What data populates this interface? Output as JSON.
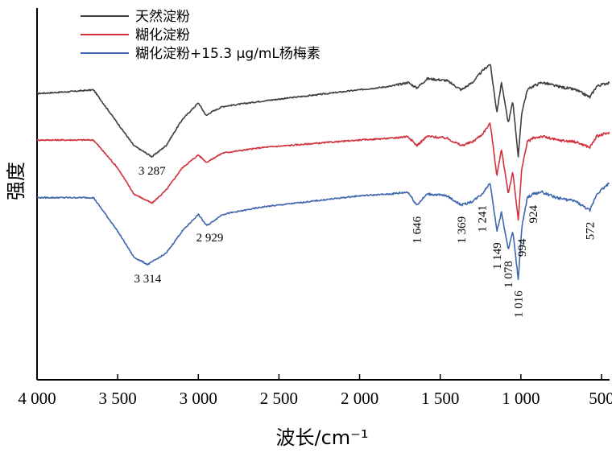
{
  "chart_data": {
    "type": "line",
    "xlabel": "波长/cm⁻¹",
    "ylabel": "强度",
    "x_range": [
      4000,
      450
    ],
    "x_reversed": true,
    "x_ticks": [
      4000,
      3500,
      3000,
      2500,
      2000,
      1500,
      1000,
      500
    ],
    "x_tick_labels": [
      "4 000",
      "3 500",
      "3 000",
      "2 500",
      "2 000",
      "1 500",
      "1 000",
      "500"
    ],
    "y_ticks_shown": false,
    "ylim": [
      0,
      1
    ],
    "legend_position": "top-left",
    "series": [
      {
        "name": "天然淀粉",
        "color": "#3f3f3f",
        "x": [
          4000,
          3800,
          3650,
          3500,
          3400,
          3287,
          3200,
          3100,
          3000,
          2950,
          2929,
          2850,
          2600,
          2300,
          2000,
          1800,
          1700,
          1646,
          1580,
          1460,
          1369,
          1300,
          1241,
          1190,
          1149,
          1120,
          1078,
          1050,
          1016,
          994,
          960,
          924,
          870,
          780,
          660,
          572,
          530,
          450
        ],
        "values": [
          0.77,
          0.775,
          0.78,
          0.69,
          0.63,
          0.6,
          0.63,
          0.7,
          0.745,
          0.71,
          0.718,
          0.735,
          0.75,
          0.765,
          0.78,
          0.79,
          0.8,
          0.785,
          0.81,
          0.805,
          0.78,
          0.8,
          0.83,
          0.85,
          0.72,
          0.8,
          0.69,
          0.75,
          0.6,
          0.72,
          0.78,
          0.79,
          0.8,
          0.79,
          0.78,
          0.76,
          0.79,
          0.8
        ]
      },
      {
        "name": "糊化淀粉",
        "color": "#d0313d",
        "x": [
          4000,
          3800,
          3650,
          3500,
          3400,
          3287,
          3200,
          3100,
          3000,
          2950,
          2929,
          2850,
          2600,
          2300,
          2000,
          1800,
          1700,
          1646,
          1580,
          1460,
          1369,
          1300,
          1241,
          1190,
          1149,
          1120,
          1078,
          1050,
          1016,
          994,
          960,
          924,
          870,
          780,
          660,
          572,
          530,
          450
        ],
        "values": [
          0.645,
          0.645,
          0.645,
          0.57,
          0.5,
          0.475,
          0.51,
          0.57,
          0.605,
          0.585,
          0.59,
          0.61,
          0.625,
          0.635,
          0.645,
          0.65,
          0.655,
          0.63,
          0.655,
          0.65,
          0.63,
          0.64,
          0.66,
          0.69,
          0.55,
          0.62,
          0.5,
          0.56,
          0.43,
          0.57,
          0.64,
          0.65,
          0.655,
          0.645,
          0.64,
          0.625,
          0.655,
          0.665
        ]
      },
      {
        "name": "糊化淀粉+15.3 μg/mL杨梅素",
        "color": "#3f67ae",
        "x": [
          4000,
          3800,
          3650,
          3500,
          3400,
          3314,
          3200,
          3100,
          3000,
          2950,
          2929,
          2850,
          2600,
          2300,
          2000,
          1800,
          1700,
          1646,
          1580,
          1460,
          1369,
          1300,
          1241,
          1190,
          1149,
          1120,
          1078,
          1050,
          1016,
          994,
          960,
          924,
          870,
          780,
          660,
          572,
          530,
          450
        ],
        "values": [
          0.49,
          0.49,
          0.49,
          0.4,
          0.33,
          0.31,
          0.34,
          0.4,
          0.445,
          0.415,
          0.42,
          0.445,
          0.465,
          0.48,
          0.495,
          0.5,
          0.505,
          0.47,
          0.5,
          0.495,
          0.47,
          0.48,
          0.5,
          0.53,
          0.4,
          0.45,
          0.35,
          0.4,
          0.27,
          0.41,
          0.49,
          0.5,
          0.505,
          0.49,
          0.48,
          0.455,
          0.5,
          0.53
        ]
      }
    ],
    "annotations": [
      {
        "text": "3 287",
        "x": 3287,
        "series": 0
      },
      {
        "text": "2 929",
        "x": 2929,
        "series": 2
      },
      {
        "text": "3 314",
        "x": 3314,
        "series": 2
      },
      {
        "text": "1 646",
        "x": 1646,
        "series": 2,
        "vertical": true
      },
      {
        "text": "1 369",
        "x": 1369,
        "series": 2,
        "vertical": true
      },
      {
        "text": "1 241",
        "x": 1241,
        "series": 2,
        "vertical": true
      },
      {
        "text": "1 149",
        "x": 1149,
        "series": 2,
        "vertical": true
      },
      {
        "text": "1 078",
        "x": 1078,
        "series": 2,
        "vertical": true
      },
      {
        "text": "1 016",
        "x": 1016,
        "series": 2,
        "vertical": true
      },
      {
        "text": "994",
        "x": 994,
        "series": 2,
        "vertical": true
      },
      {
        "text": "924",
        "x": 924,
        "series": 2,
        "vertical": true
      },
      {
        "text": "572",
        "x": 572,
        "series": 2,
        "vertical": true
      }
    ]
  }
}
